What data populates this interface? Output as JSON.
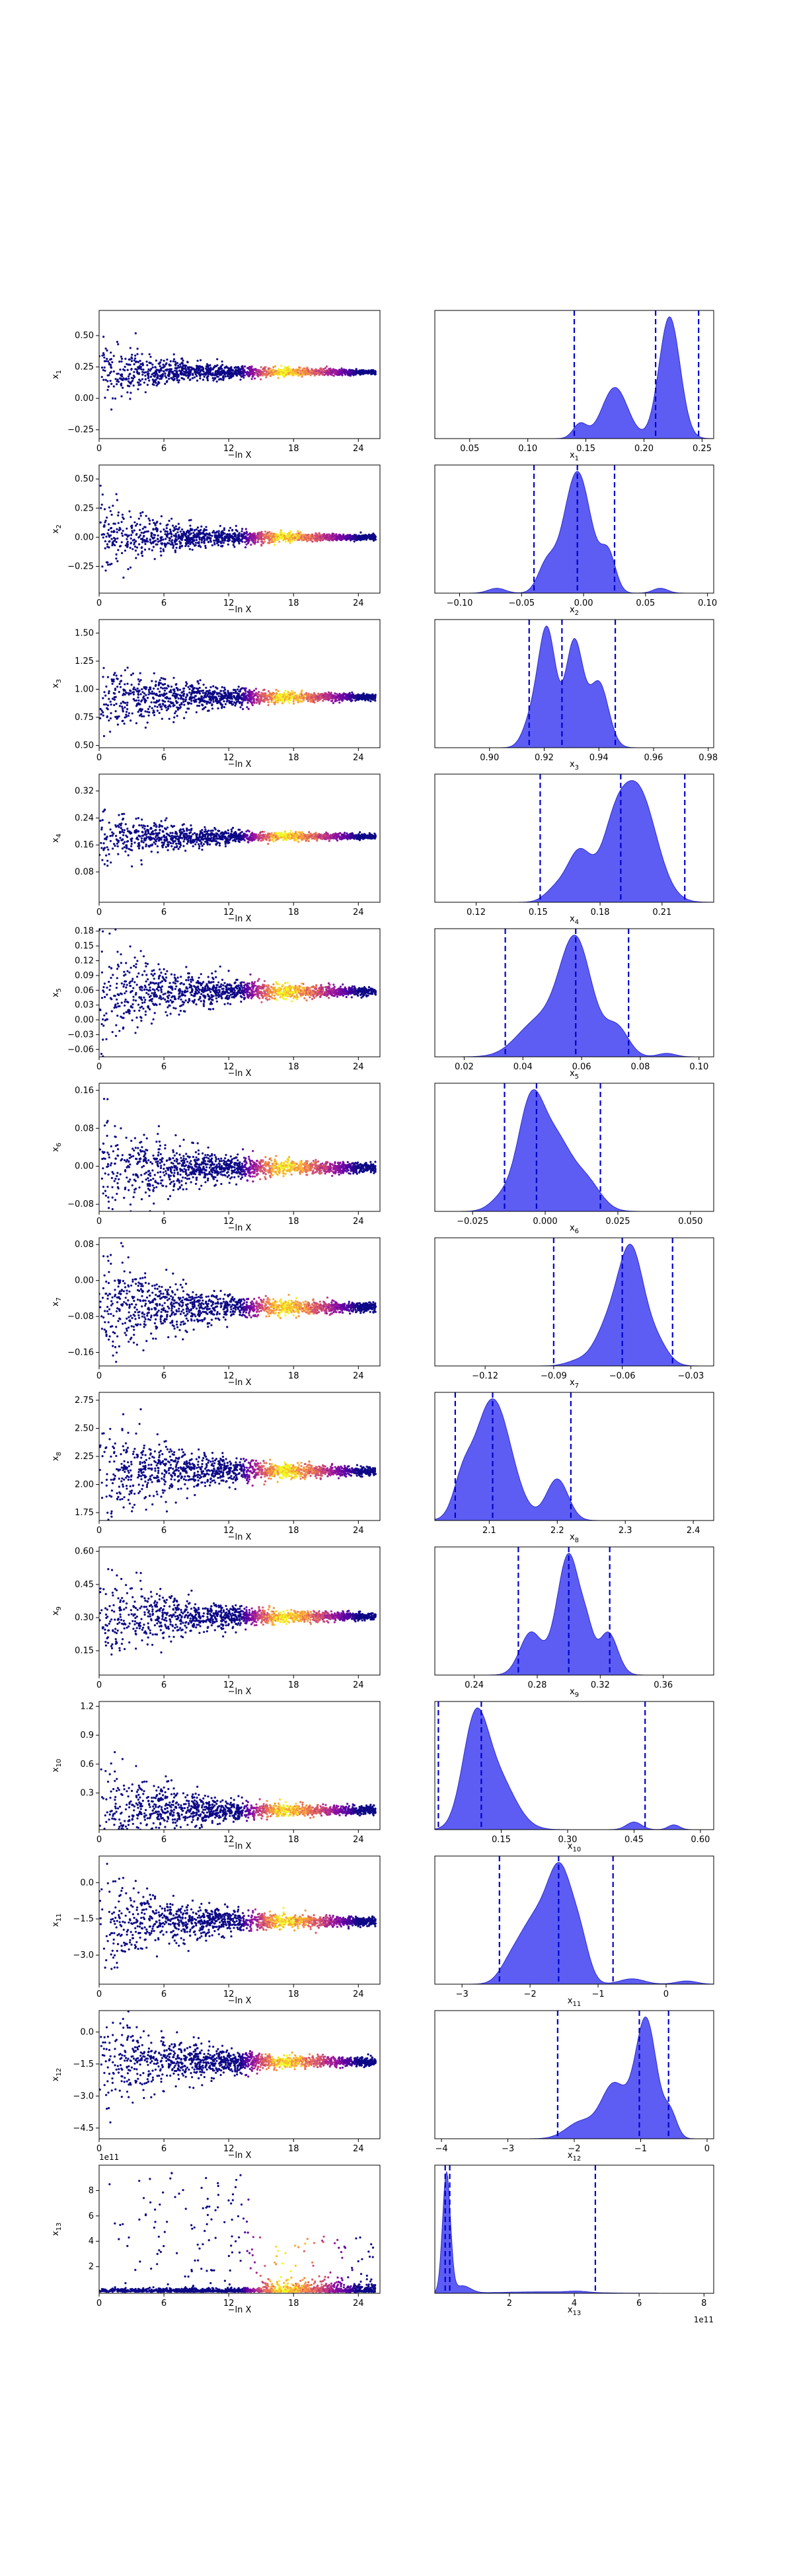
{
  "colors": {
    "kde_fill": "#5454f2",
    "kde_edge": "#2b2bd0",
    "quantile_line": "#0000cc",
    "point_colormap": [
      "#0d0887",
      "#5c01a6",
      "#9c179e",
      "#cc4778",
      "#ed7953",
      "#fdb42f",
      "#f0f921"
    ]
  },
  "chart_data": {
    "type": "scatter",
    "layout": "13 rows; left: trace of parameter vs -ln X (points coloured by weight), right: marginal posterior density with quantile lines",
    "trace_xlabel": "−ln X",
    "trace_xticks": [
      "0",
      "6",
      "12",
      "18",
      "24"
    ],
    "trace_xlim": [
      0,
      26
    ],
    "params": [
      {
        "label": "x1",
        "sub": "1",
        "mean": 0.21,
        "spread": 0.32,
        "ylim": [
          -0.32,
          0.7
        ],
        "yticks": [
          "−0.25",
          "0.00",
          "0.25",
          "0.50"
        ],
        "xlim": [
          0.02,
          0.26
        ],
        "xticks": [
          "0.05",
          "0.10",
          "0.15",
          "0.20",
          "0.25"
        ],
        "quantiles": [
          0.14,
          0.21,
          0.247
        ],
        "peaks": [
          [
            0.222,
            0.009,
            1.0
          ],
          [
            0.175,
            0.011,
            0.42
          ],
          [
            0.145,
            0.006,
            0.12
          ]
        ],
        "offset": ""
      },
      {
        "label": "x2",
        "sub": "2",
        "mean": 0.0,
        "spread": 0.42,
        "ylim": [
          -0.48,
          0.62
        ],
        "yticks": [
          "−0.25",
          "0.00",
          "0.25",
          "0.50"
        ],
        "xlim": [
          -0.12,
          0.105
        ],
        "xticks": [
          "−0.10",
          "−0.05",
          "0.00",
          "0.05",
          "0.10"
        ],
        "quantiles": [
          -0.04,
          -0.005,
          0.025
        ],
        "peaks": [
          [
            -0.005,
            0.011,
            1.0
          ],
          [
            0.02,
            0.006,
            0.3
          ],
          [
            -0.03,
            0.007,
            0.22
          ],
          [
            0.062,
            0.006,
            0.04
          ],
          [
            -0.07,
            0.007,
            0.04
          ]
        ],
        "offset": ""
      },
      {
        "label": "x3",
        "sub": "3",
        "mean": 0.93,
        "spread": 0.5,
        "ylim": [
          0.48,
          1.62
        ],
        "yticks": [
          "0.50",
          "0.75",
          "1.00",
          "1.25",
          "1.50"
        ],
        "xlim": [
          0.88,
          0.982
        ],
        "xticks": [
          "0.90",
          "0.92",
          "0.94",
          "0.96",
          "0.98"
        ],
        "quantiles": [
          0.9145,
          0.9265,
          0.946
        ],
        "peaks": [
          [
            0.921,
            0.0032,
            1.0
          ],
          [
            0.931,
            0.0032,
            0.9
          ],
          [
            0.94,
            0.0035,
            0.55
          ],
          [
            0.915,
            0.003,
            0.2
          ]
        ],
        "offset": ""
      },
      {
        "label": "x4",
        "sub": "4",
        "mean": 0.185,
        "spread": 0.12,
        "ylim": [
          -0.01,
          0.37
        ],
        "yticks": [
          "0.08",
          "0.16",
          "0.24",
          "0.32"
        ],
        "xlim": [
          0.1,
          0.235
        ],
        "xticks": [
          "0.12",
          "0.15",
          "0.18",
          "0.21"
        ],
        "quantiles": [
          0.151,
          0.19,
          0.221
        ],
        "peaks": [
          [
            0.198,
            0.009,
            1.0
          ],
          [
            0.17,
            0.006,
            0.45
          ],
          [
            0.186,
            0.006,
            0.4
          ],
          [
            0.158,
            0.005,
            0.1
          ]
        ],
        "offset": ""
      },
      {
        "label": "x5",
        "sub": "5",
        "mean": 0.058,
        "spread": 0.15,
        "ylim": [
          -0.075,
          0.185
        ],
        "yticks": [
          "−0.06",
          "−0.03",
          "0.00",
          "0.03",
          "0.06",
          "0.09",
          "0.12",
          "0.15",
          "0.18"
        ],
        "xlim": [
          0.01,
          0.105
        ],
        "xticks": [
          "0.02",
          "0.04",
          "0.06",
          "0.08",
          "0.10"
        ],
        "quantiles": [
          0.034,
          0.058,
          0.076
        ],
        "peaks": [
          [
            0.058,
            0.0055,
            1.0
          ],
          [
            0.045,
            0.007,
            0.3
          ],
          [
            0.072,
            0.004,
            0.25
          ],
          [
            0.089,
            0.003,
            0.03
          ]
        ],
        "offset": ""
      },
      {
        "label": "x6",
        "sub": "6",
        "mean": -0.003,
        "spread": 0.17,
        "ylim": [
          -0.095,
          0.175
        ],
        "yticks": [
          "−0.08",
          "0.00",
          "0.08",
          "0.16"
        ],
        "xlim": [
          -0.038,
          0.058
        ],
        "xticks": [
          "−0.025",
          "0.000",
          "0.025",
          "0.050"
        ],
        "quantiles": [
          -0.014,
          -0.003,
          0.019
        ],
        "peaks": [
          [
            -0.005,
            0.0045,
            1.0
          ],
          [
            0.004,
            0.005,
            0.6
          ],
          [
            0.014,
            0.005,
            0.28
          ],
          [
            -0.015,
            0.004,
            0.12
          ]
        ],
        "offset": ""
      },
      {
        "label": "x7",
        "sub": "7",
        "mean": -0.06,
        "spread": 0.18,
        "ylim": [
          -0.19,
          0.095
        ],
        "yticks": [
          "−0.16",
          "−0.08",
          "0.00",
          "0.08"
        ],
        "xlim": [
          -0.142,
          -0.02
        ],
        "xticks": [
          "−0.12",
          "−0.09",
          "−0.06",
          "−0.03"
        ],
        "quantiles": [
          -0.09,
          -0.06,
          -0.038
        ],
        "peaks": [
          [
            -0.056,
            0.0055,
            1.0
          ],
          [
            -0.066,
            0.006,
            0.35
          ],
          [
            -0.045,
            0.005,
            0.2
          ],
          [
            -0.08,
            0.005,
            0.04
          ]
        ],
        "offset": ""
      },
      {
        "label": "x8",
        "sub": "8",
        "mean": 2.12,
        "spread": 0.7,
        "ylim": [
          1.68,
          2.82
        ],
        "yticks": [
          "1.75",
          "2.00",
          "2.25",
          "2.50",
          "2.75"
        ],
        "xlim": [
          2.02,
          2.43
        ],
        "xticks": [
          "2.1",
          "2.2",
          "2.3",
          "2.4"
        ],
        "quantiles": [
          2.05,
          2.105,
          2.22
        ],
        "peaks": [
          [
            2.105,
            0.027,
            1.0
          ],
          [
            2.2,
            0.016,
            0.34
          ],
          [
            2.06,
            0.013,
            0.22
          ]
        ],
        "offset": ""
      },
      {
        "label": "x9",
        "sub": "9",
        "mean": 0.305,
        "spread": 0.3,
        "ylim": [
          0.04,
          0.62
        ],
        "yticks": [
          "0.15",
          "0.30",
          "0.45",
          "0.60"
        ],
        "xlim": [
          0.215,
          0.392
        ],
        "xticks": [
          "0.24",
          "0.28",
          "0.32",
          "0.36"
        ],
        "quantiles": [
          0.268,
          0.3,
          0.326
        ],
        "peaks": [
          [
            0.3,
            0.0075,
            1.0
          ],
          [
            0.325,
            0.006,
            0.35
          ],
          [
            0.276,
            0.007,
            0.35
          ],
          [
            0.312,
            0.004,
            0.2
          ]
        ],
        "offset": ""
      },
      {
        "label": "x10",
        "sub": "10",
        "mean": 0.12,
        "spread": 0.7,
        "ylim": [
          -0.08,
          1.25
        ],
        "yticks": [
          "0.3",
          "0.6",
          "0.9",
          "1.2"
        ],
        "xlim": [
          0.0,
          0.63
        ],
        "xticks": [
          "0.15",
          "0.30",
          "0.45",
          "0.60"
        ],
        "quantiles": [
          0.008,
          0.105,
          0.475
        ],
        "peaks": [
          [
            0.09,
            0.028,
            1.0
          ],
          [
            0.14,
            0.04,
            0.55
          ],
          [
            0.45,
            0.017,
            0.08
          ],
          [
            0.54,
            0.013,
            0.05
          ]
        ],
        "offset": ""
      },
      {
        "label": "x11",
        "sub": "11",
        "mean": -1.6,
        "spread": 3.0,
        "ylim": [
          -4.2,
          1.1
        ],
        "yticks": [
          "−3.0",
          "−1.5",
          "0.0"
        ],
        "xlim": [
          -3.4,
          0.7
        ],
        "xticks": [
          "−3",
          "−2",
          "−1",
          "0"
        ],
        "quantiles": [
          -2.45,
          -1.58,
          -0.78
        ],
        "peaks": [
          [
            -1.55,
            0.19,
            1.0
          ],
          [
            -1.95,
            0.22,
            0.55
          ],
          [
            -2.3,
            0.16,
            0.14
          ],
          [
            -1.25,
            0.13,
            0.28
          ],
          [
            -0.5,
            0.18,
            0.05
          ],
          [
            0.3,
            0.15,
            0.03
          ]
        ],
        "offset": ""
      },
      {
        "label": "x12",
        "sub": "12",
        "mean": -1.4,
        "spread": 3.4,
        "ylim": [
          -5.0,
          1.0
        ],
        "yticks": [
          "−4.5",
          "−3.0",
          "−1.5",
          "0.0"
        ],
        "xlim": [
          -4.1,
          0.1
        ],
        "xticks": [
          "−4",
          "−3",
          "−2",
          "−1",
          "0"
        ],
        "quantiles": [
          -2.25,
          -1.02,
          -0.58
        ],
        "peaks": [
          [
            -0.92,
            0.16,
            1.0
          ],
          [
            -1.4,
            0.19,
            0.45
          ],
          [
            -1.9,
            0.22,
            0.14
          ],
          [
            -0.55,
            0.1,
            0.2
          ]
        ],
        "offset": ""
      },
      {
        "label": "x13",
        "sub": "13",
        "mean": 0.2,
        "spread": 0.3,
        "ylim": [
          -0.1,
          10.0
        ],
        "yticks": [
          "2",
          "4",
          "6",
          "8"
        ],
        "xlim": [
          -0.3,
          8.3
        ],
        "xticks": [
          "2",
          "4",
          "6",
          "8"
        ],
        "quantiles": [
          0.02,
          0.16,
          4.65
        ],
        "peaks": [
          [
            0.06,
            0.12,
            1.0
          ],
          [
            0.55,
            0.25,
            0.06
          ],
          [
            3.0,
            1.3,
            0.012
          ],
          [
            4.1,
            0.3,
            0.01
          ]
        ],
        "offset": "1e11"
      }
    ]
  }
}
